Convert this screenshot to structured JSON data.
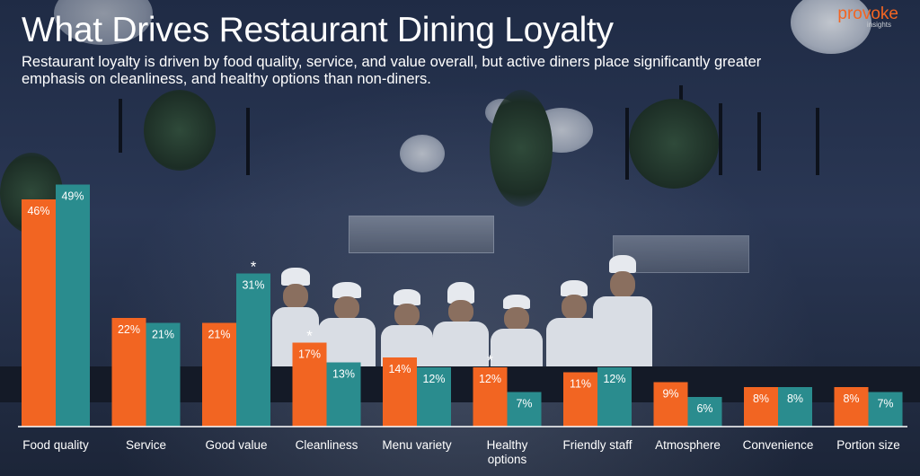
{
  "header": {
    "title": "What Drives Restaurant Dining Loyalty",
    "subtitle": "Restaurant loyalty is driven by food quality, service, and value overall, but active diners place significantly greater emphasis on cleanliness, and healthy options than non-diners."
  },
  "logo": {
    "name": "provoke",
    "tagline": "insights"
  },
  "colors": {
    "series1": "#f26522",
    "series2": "#2a8c8e",
    "text": "#ffffff",
    "axis": "#ffffff"
  },
  "chart_data": {
    "type": "bar",
    "categories": [
      "Food quality",
      "Service",
      "Good value",
      "Cleanliness",
      "Menu variety",
      "Healthy options",
      "Friendly staff",
      "Atmosphere",
      "Convenience",
      "Portion size"
    ],
    "series": [
      {
        "values": [
          46,
          22,
          21,
          17,
          14,
          12,
          11,
          9,
          8,
          8
        ],
        "color": "#f26522",
        "labels": [
          "46%",
          "22%",
          "21%",
          "17%",
          "14%",
          "12%",
          "11%",
          "9%",
          "8%",
          "8%"
        ]
      },
      {
        "values": [
          49,
          21,
          31,
          13,
          12,
          7,
          12,
          6,
          8,
          7
        ],
        "color": "#2a8c8e",
        "labels": [
          "49%",
          "21%",
          "31%",
          "13%",
          "12%",
          "7%",
          "12%",
          "6%",
          "8%",
          "7%"
        ]
      }
    ],
    "unit": "%",
    "ylim": [
      0,
      50
    ],
    "grid": false,
    "significance_marker": "*",
    "significant": [
      {
        "category": "Good value",
        "series": 1
      },
      {
        "category": "Cleanliness",
        "series": 0
      },
      {
        "category": "Healthy options",
        "series": 0
      }
    ]
  }
}
